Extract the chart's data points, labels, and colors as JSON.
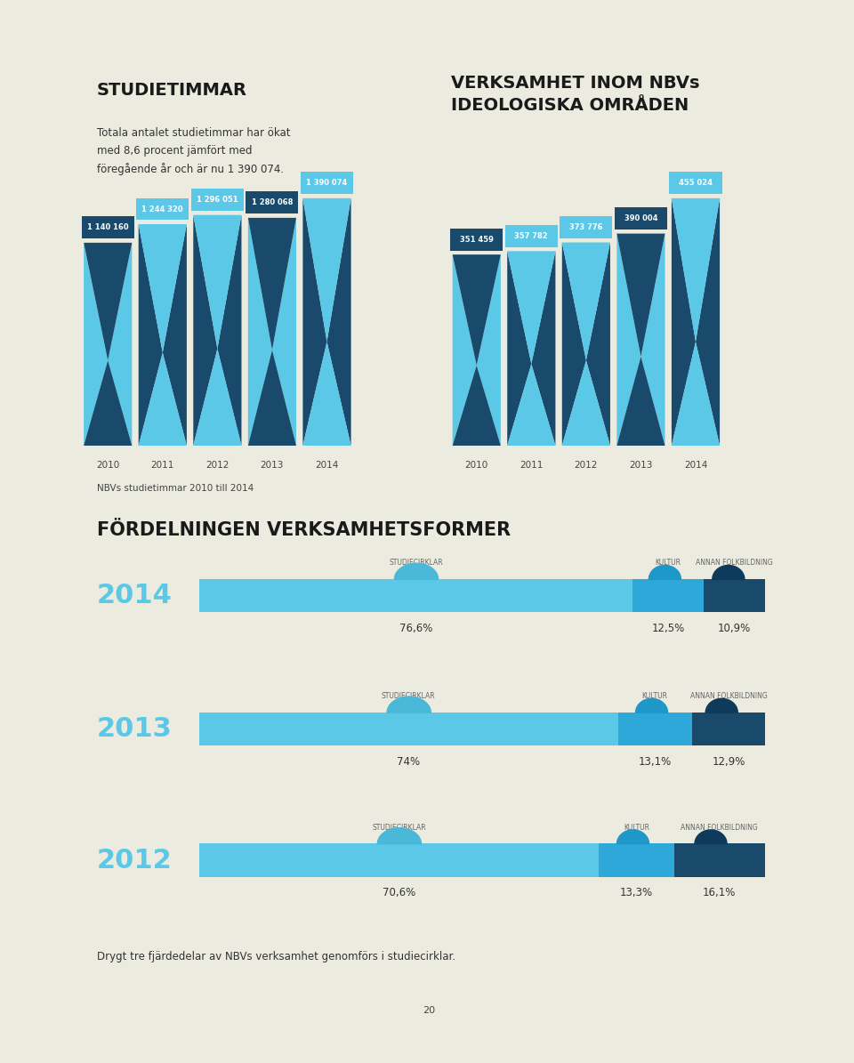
{
  "bg_color": "#ebebdf",
  "page_bg": "#ffffff",
  "title1": "STUDIETIMMAR",
  "subtitle1": "Totala antalet studietimmar har ökat\nmed 8,6 procent jämfört med\nföregående år och är nu 1 390 074.",
  "title2": "VERKSAMHET INOM NBVs\nIDEOLOGISKA OMRÅDEN",
  "left_years": [
    "2010",
    "2011",
    "2012",
    "2013",
    "2014"
  ],
  "left_values": [
    1140160,
    1244320,
    1296051,
    1280068,
    1390074
  ],
  "left_labels": [
    "1 140 160",
    "1 244 320",
    "1 296 051",
    "1 280 068",
    "1 390 074"
  ],
  "left_colors": [
    "#1a4a6b",
    "#5bc8e8",
    "#5bc8e8",
    "#1a4a6b",
    "#5bc8e8"
  ],
  "right_years": [
    "2010",
    "2011",
    "2012",
    "2013",
    "2014"
  ],
  "right_values": [
    351459,
    357782,
    373776,
    390004,
    455024
  ],
  "right_labels": [
    "351 459",
    "357 782",
    "373 776",
    "390 004",
    "455 024"
  ],
  "right_colors": [
    "#1a4a6b",
    "#5bc8e8",
    "#5bc8e8",
    "#1a4a6b",
    "#5bc8e8"
  ],
  "light_blue": "#5bc8e8",
  "dark_blue": "#1a4a6b",
  "caption": "NBVs studietimmar 2010 till 2014",
  "section2_title": "FÖRDELNINGEN VERKSAMHETSFORMER",
  "bars": [
    {
      "year": "2014",
      "studiecirklar_pct": 76.6,
      "kultur_pct": 12.5,
      "folkbildning_pct": 10.9,
      "studiecirklar_label": "76,6%",
      "kultur_label": "12,5%",
      "folkbildning_label": "10,9%"
    },
    {
      "year": "2013",
      "studiecirklar_pct": 74.0,
      "kultur_pct": 13.1,
      "folkbildning_pct": 12.9,
      "studiecirklar_label": "74%",
      "kultur_label": "13,1%",
      "folkbildning_label": "12,9%"
    },
    {
      "year": "2012",
      "studiecirklar_pct": 70.6,
      "kultur_pct": 13.3,
      "folkbildning_pct": 16.1,
      "studiecirklar_label": "70,6%",
      "kultur_label": "13,3%",
      "folkbildning_label": "16,1%"
    }
  ],
  "footer_text": "Drygt tre fjärdedelar av NBVs verksamhet genomförs i studiecirklar.",
  "page_number": "20",
  "label_col_studiecirklar": "STUDIECIRKLAR",
  "label_col_kultur": "KULTUR",
  "label_col_folkbildning": "ANNAN FOLKBILDNING"
}
